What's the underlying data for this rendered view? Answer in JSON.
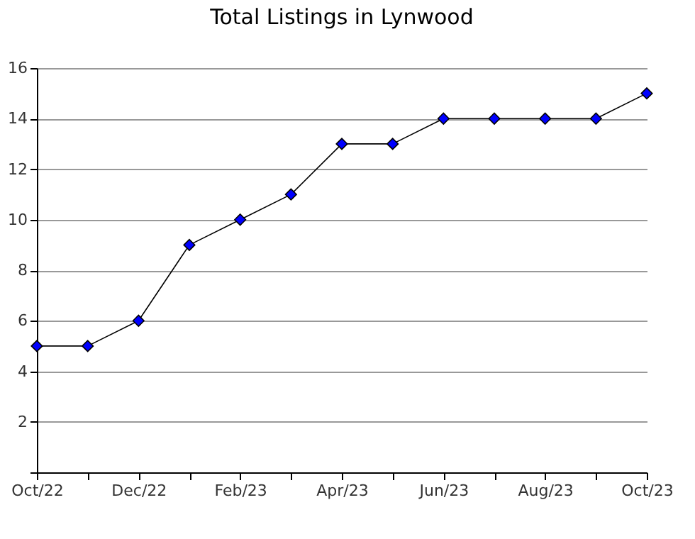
{
  "chart_data": {
    "type": "line",
    "title": "Total Listings in Lynwood",
    "categories": [
      "Oct/22",
      null,
      "Dec/22",
      null,
      "Feb/23",
      null,
      "Apr/23",
      null,
      "Jun/23",
      null,
      "Aug/23",
      null,
      "Oct/23"
    ],
    "series": [
      {
        "color": "#0000ff",
        "values": [
          5,
          5,
          6,
          9,
          10,
          11,
          13,
          13,
          14,
          14,
          14,
          14,
          15
        ]
      }
    ],
    "ylim": [
      0,
      16
    ],
    "yticks": [
      {
        "value": 0,
        "label": null
      },
      2,
      4,
      6,
      8,
      10,
      12,
      14,
      16
    ],
    "grid": "y",
    "marker": "diamond",
    "line_style": "solid"
  }
}
